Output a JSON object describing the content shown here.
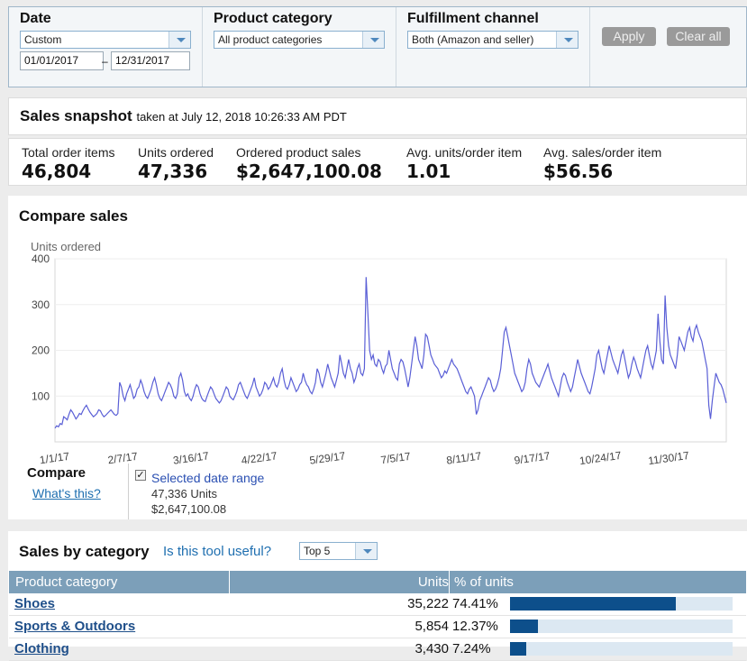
{
  "filters": {
    "date": {
      "label": "Date",
      "selected": "Custom",
      "start": "01/01/2017",
      "end": "12/31/2017",
      "dash": "–"
    },
    "category": {
      "label": "Product category",
      "selected": "All product categories"
    },
    "fulfillment": {
      "label": "Fulfillment channel",
      "selected": "Both (Amazon and seller)"
    },
    "apply_label": "Apply",
    "clear_label": "Clear all"
  },
  "snapshot": {
    "title": "Sales snapshot",
    "taken": "taken at July 12, 2018 10:26:33 AM PDT",
    "stats": [
      {
        "label": "Total order items",
        "value": "46,804"
      },
      {
        "label": "Units ordered",
        "value": "47,336"
      },
      {
        "label": "Ordered product sales",
        "value": "$2,647,100.08"
      },
      {
        "label": "Avg. units/order item",
        "value": "1.01"
      },
      {
        "label": "Avg. sales/order item",
        "value": "$56.56"
      }
    ]
  },
  "compare": {
    "title": "Compare sales",
    "compare_label": "Compare",
    "whats_this": "What's this?",
    "selected_range": "Selected date range",
    "units_text": "47,336 Units",
    "sales_text": "$2,647,100.08"
  },
  "colors": {
    "line": "#5a5fd6",
    "accent": "#0d4f8b",
    "header": "#7c9fb9"
  },
  "chart_data": {
    "type": "line",
    "ylabel": "Units ordered",
    "ylim": [
      0,
      400
    ],
    "yticks": [
      100,
      200,
      300,
      400
    ],
    "xticks": [
      "1/1/17",
      "2/7/17",
      "3/16/17",
      "4/22/17",
      "5/29/17",
      "7/5/17",
      "8/11/17",
      "9/17/17",
      "10/24/17",
      "11/30/17"
    ],
    "x_start": "2017-01-01",
    "x_end": "2017-12-31",
    "series": [
      {
        "values": [
          30,
          35,
          33,
          40,
          38,
          55,
          52,
          48,
          60,
          70,
          65,
          58,
          50,
          55,
          62,
          60,
          68,
          75,
          80,
          72,
          65,
          60,
          55,
          58,
          62,
          70,
          68,
          60,
          55,
          58,
          62,
          66,
          70,
          65,
          60,
          58,
          62,
          130,
          120,
          100,
          90,
          105,
          115,
          125,
          110,
          95,
          100,
          115,
          120,
          135,
          125,
          110,
          100,
          95,
          105,
          115,
          130,
          140,
          125,
          105,
          95,
          90,
          100,
          110,
          120,
          130,
          125,
          115,
          100,
          95,
          105,
          140,
          150,
          135,
          110,
          100,
          105,
          95,
          90,
          100,
          115,
          125,
          120,
          105,
          95,
          90,
          88,
          100,
          110,
          120,
          115,
          105,
          95,
          90,
          85,
          90,
          100,
          110,
          120,
          115,
          100,
          95,
          92,
          100,
          110,
          125,
          130,
          120,
          110,
          100,
          95,
          105,
          115,
          125,
          140,
          120,
          110,
          100,
          105,
          115,
          130,
          125,
          115,
          120,
          130,
          140,
          125,
          120,
          130,
          150,
          160,
          135,
          120,
          115,
          125,
          140,
          130,
          120,
          110,
          115,
          125,
          130,
          150,
          135,
          125,
          120,
          110,
          105,
          115,
          130,
          160,
          150,
          130,
          120,
          135,
          150,
          170,
          155,
          140,
          130,
          120,
          135,
          150,
          190,
          170,
          150,
          140,
          160,
          180,
          160,
          150,
          130,
          140,
          160,
          170,
          150,
          145,
          160,
          360,
          280,
          200,
          180,
          190,
          170,
          165,
          180,
          175,
          160,
          150,
          165,
          170,
          200,
          180,
          160,
          150,
          140,
          135,
          170,
          180,
          175,
          160,
          140,
          120,
          140,
          170,
          200,
          230,
          210,
          180,
          170,
          160,
          190,
          235,
          230,
          210,
          190,
          180,
          170,
          165,
          160,
          150,
          140,
          145,
          155,
          150,
          160,
          170,
          180,
          170,
          165,
          160,
          150,
          140,
          130,
          120,
          110,
          105,
          115,
          120,
          110,
          100,
          60,
          70,
          90,
          100,
          110,
          120,
          130,
          140,
          135,
          120,
          110,
          115,
          125,
          140,
          160,
          200,
          240,
          250,
          230,
          210,
          190,
          170,
          150,
          140,
          130,
          120,
          110,
          115,
          130,
          160,
          180,
          170,
          150,
          140,
          130,
          125,
          120,
          130,
          140,
          150,
          160,
          170,
          155,
          140,
          130,
          120,
          110,
          100,
          120,
          140,
          150,
          145,
          130,
          120,
          110,
          120,
          140,
          160,
          180,
          165,
          150,
          140,
          130,
          120,
          110,
          105,
          120,
          140,
          160,
          190,
          200,
          180,
          160,
          150,
          170,
          190,
          210,
          195,
          180,
          170,
          160,
          150,
          170,
          190,
          200,
          180,
          160,
          140,
          150,
          170,
          185,
          175,
          160,
          150,
          140,
          160,
          180,
          200,
          210,
          190,
          170,
          160,
          180,
          200,
          280,
          220,
          180,
          170,
          320,
          250,
          210,
          190,
          180,
          170,
          160,
          190,
          230,
          220,
          210,
          200,
          220,
          240,
          250,
          230,
          220,
          245,
          255,
          240,
          230,
          220,
          200,
          180,
          160,
          80,
          50,
          90,
          120,
          150,
          140,
          130,
          125,
          115,
          100,
          85
        ]
      }
    ]
  },
  "sales_by_category": {
    "title": "Sales by category",
    "useful_link": "Is this tool useful?",
    "top_select": "Top 5",
    "headers": {
      "category": "Product category",
      "units": "Units",
      "pct": "% of units"
    },
    "rows": [
      {
        "name": "Shoes",
        "units": "35,222",
        "pct": "74.41%",
        "fraction": 0.7441
      },
      {
        "name": "Sports & Outdoors",
        "units": "5,854",
        "pct": "12.37%",
        "fraction": 0.1237
      },
      {
        "name": "Clothing",
        "units": "3,430",
        "pct": "7.24%",
        "fraction": 0.0724
      }
    ]
  }
}
